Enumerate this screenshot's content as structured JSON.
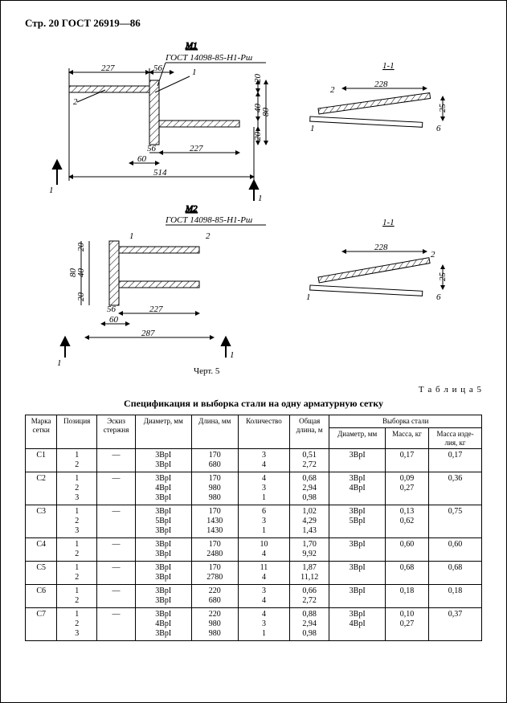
{
  "header": {
    "page_label": "Стр. 20",
    "standard": "ГОСТ  26919—86"
  },
  "diagram": {
    "m1_label": "М1",
    "m2_label": "М2",
    "section_label": "1-1",
    "gost_ref": "ГОСТ 14098-85-Н1-Рш",
    "figure_caption": "Черт. 5",
    "dims_m1": {
      "w_left": "227",
      "gap": "56",
      "t20a": "20",
      "t40": "40",
      "t80": "80",
      "t20b": "20",
      "w_right": "227",
      "off56": "56",
      "off60": "60",
      "total": "514"
    },
    "dims_m2": {
      "t20a": "20",
      "t40": "40",
      "t80": "80",
      "t20b": "20",
      "off56": "56",
      "w_right": "227",
      "off60": "60",
      "total": "287"
    },
    "section": {
      "len": "228",
      "h25": "25",
      "h6": "6"
    },
    "node_labels": {
      "one": "1",
      "two": "2"
    }
  },
  "table": {
    "caption_right": "Т а б л и ц а 5",
    "title": "Спецификация и выборка стали на одну арматурную сетку",
    "columns": {
      "mark": "Марка\nсетки",
      "pos": "Позиция",
      "sketch": "Эскиз\nстержня",
      "diam": "Диаметр, мм",
      "len": "Длина, мм",
      "qty": "Количество",
      "total_len": "Общая\nдлина, м",
      "sel_header": "Выборка стали",
      "sel_diam": "Диаметр, мм",
      "sel_mass": "Масса, кг",
      "sel_mass_item": "Масса изде-\nлия, кг"
    },
    "rows": [
      {
        "mark": "С1",
        "pos": "1\n2",
        "sketch": "—",
        "diam": "3ВрI\n3ВрI",
        "len": "170\n680",
        "qty": "3\n4",
        "tlen": "0,51\n2,72",
        "sdiam": "3ВрI",
        "smass": "0,17",
        "simass": "0,17"
      },
      {
        "mark": "С2",
        "pos": "1\n2\n3",
        "sketch": "—",
        "diam": "3ВрI\n4ВрI\n3ВрI",
        "len": "170\n980\n980",
        "qty": "4\n3\n1",
        "tlen": "0,68\n2,94\n0,98",
        "sdiam": "3ВрI\n4ВрI",
        "smass": "0,09\n0,27",
        "simass": "0,36"
      },
      {
        "mark": "С3",
        "pos": "1\n2\n3",
        "sketch": "—",
        "diam": "3ВрI\n5ВрI\n3ВрI",
        "len": "170\n1430\n1430",
        "qty": "6\n3\n1",
        "tlen": "1,02\n4,29\n1,43",
        "sdiam": "3ВрI\n5ВрI",
        "smass": "0,13\n0,62",
        "simass": "0,75"
      },
      {
        "mark": "С4",
        "pos": "1\n2",
        "sketch": "—",
        "diam": "3ВрI\n3ВрI",
        "len": "170\n2480",
        "qty": "10\n4",
        "tlen": "1,70\n9,92",
        "sdiam": "3ВрI",
        "smass": "0,60",
        "simass": "0,60"
      },
      {
        "mark": "С5",
        "pos": "1\n2",
        "sketch": "—",
        "diam": "3ВрI\n3ВрI",
        "len": "170\n2780",
        "qty": "11\n4",
        "tlen": "1,87\n11,12",
        "sdiam": "3ВрI",
        "smass": "0,68",
        "simass": "0,68"
      },
      {
        "mark": "С6",
        "pos": "1\n2",
        "sketch": "—",
        "diam": "3ВрI\n3ВрI",
        "len": "220\n680",
        "qty": "3\n4",
        "tlen": "0,66\n2,72",
        "sdiam": "3ВрI",
        "smass": "0,18",
        "simass": "0,18"
      },
      {
        "mark": "С7",
        "pos": "1\n2\n3",
        "sketch": "—",
        "diam": "3ВрI\n4ВрI\n3ВрI",
        "len": "220\n980\n980",
        "qty": "4\n3\n1",
        "tlen": "0,88\n2,94\n0,98",
        "sdiam": "3ВрI\n4ВрI",
        "smass": "0,10\n0,27",
        "simass": "0,37"
      }
    ]
  },
  "style": {
    "line_color": "#000000",
    "hatch_color": "#000000",
    "bg": "#ffffff"
  }
}
